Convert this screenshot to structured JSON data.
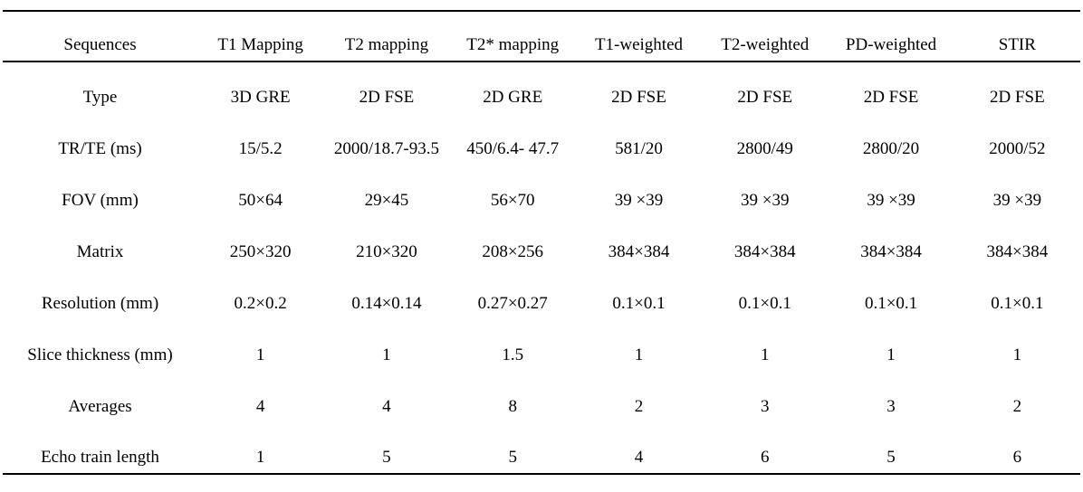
{
  "table": {
    "columns": [
      "Sequences",
      "T1 Mapping",
      "T2 mapping",
      "T2* mapping",
      "T1-weighted",
      "T2-weighted",
      "PD-weighted",
      "STIR"
    ],
    "rows": [
      {
        "label": "Type",
        "values": [
          "3D GRE",
          "2D FSE",
          "2D GRE",
          "2D FSE",
          "2D FSE",
          "2D FSE",
          "2D FSE"
        ]
      },
      {
        "label": "TR/TE (ms)",
        "values": [
          "15/5.2",
          "2000/18.7-93.5",
          "450/6.4- 47.7",
          "581/20",
          "2800/49",
          "2800/20",
          "2000/52"
        ]
      },
      {
        "label": "FOV (mm)",
        "values": [
          "50×64",
          "29×45",
          "56×70",
          "39 ×39",
          "39 ×39",
          "39 ×39",
          "39 ×39"
        ]
      },
      {
        "label": "Matrix",
        "values": [
          "250×320",
          "210×320",
          "208×256",
          "384×384",
          "384×384",
          "384×384",
          "384×384"
        ]
      },
      {
        "label": "Resolution (mm)",
        "values": [
          "0.2×0.2",
          "0.14×0.14",
          "0.27×0.27",
          "0.1×0.1",
          "0.1×0.1",
          "0.1×0.1",
          "0.1×0.1"
        ]
      },
      {
        "label": "Slice thickness (mm)",
        "values": [
          "1",
          "1",
          "1.5",
          "1",
          "1",
          "1",
          "1"
        ]
      },
      {
        "label": "Averages",
        "values": [
          "4",
          "4",
          "8",
          "2",
          "3",
          "3",
          "2"
        ]
      },
      {
        "label": "Echo train length",
        "values": [
          "1",
          "5",
          "5",
          "4",
          "6",
          "5",
          "6"
        ]
      }
    ]
  }
}
